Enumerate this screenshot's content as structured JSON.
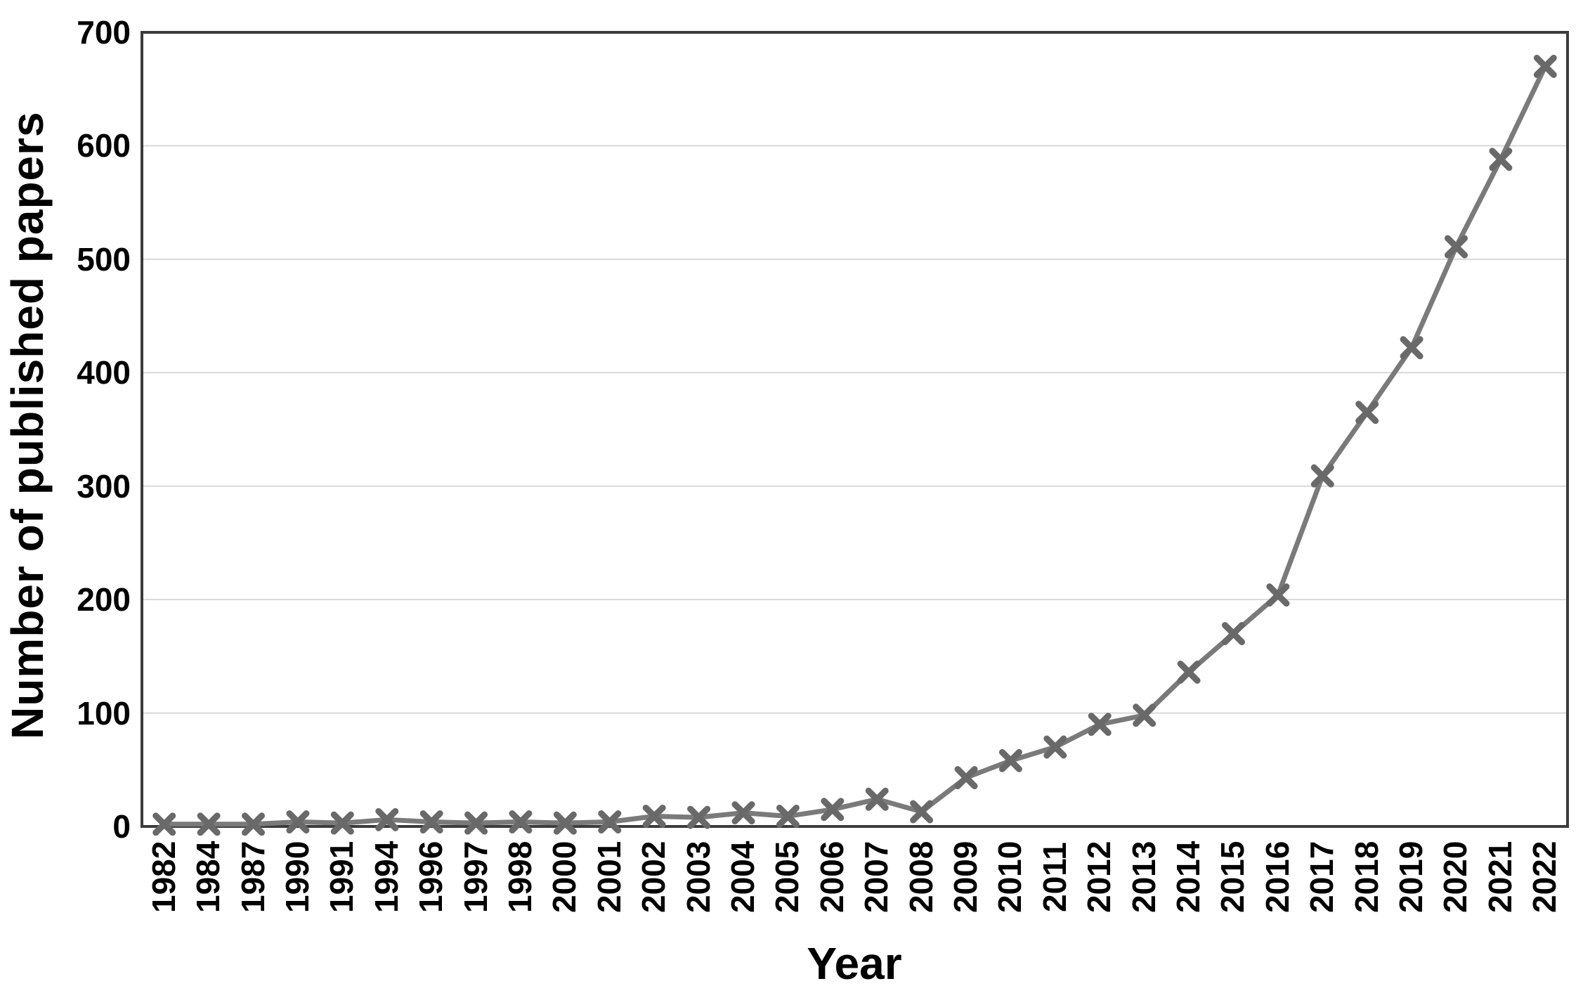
{
  "chart_data": {
    "type": "line",
    "title": "",
    "xlabel": "Year",
    "ylabel": "Number of published papers",
    "categories": [
      "1982",
      "1984",
      "1987",
      "1990",
      "1991",
      "1994",
      "1996",
      "1997",
      "1998",
      "2000",
      "2001",
      "2002",
      "2003",
      "2004",
      "2005",
      "2006",
      "2007",
      "2008",
      "2009",
      "2010",
      "2011",
      "2012",
      "2013",
      "2014",
      "2015",
      "2016",
      "2017",
      "2018",
      "2019",
      "2020",
      "2021",
      "2022"
    ],
    "values": [
      2,
      2,
      2,
      4,
      3,
      6,
      4,
      3,
      4,
      3,
      4,
      9,
      8,
      12,
      9,
      15,
      24,
      13,
      43,
      58,
      70,
      90,
      98,
      136,
      170,
      204,
      309,
      365,
      422,
      511,
      588,
      670
    ],
    "ylim": [
      0,
      700
    ],
    "yticks": [
      0,
      100,
      200,
      300,
      400,
      500,
      600,
      700
    ],
    "grid": "horizontal",
    "legend": "none",
    "marker_style": "x",
    "colors": {
      "line": "#7a7a7a",
      "marker": "#696969",
      "gridline": "#d9d9d9",
      "plot_border": "#3b3b3b",
      "text": "#000000",
      "background": "#ffffff"
    }
  }
}
